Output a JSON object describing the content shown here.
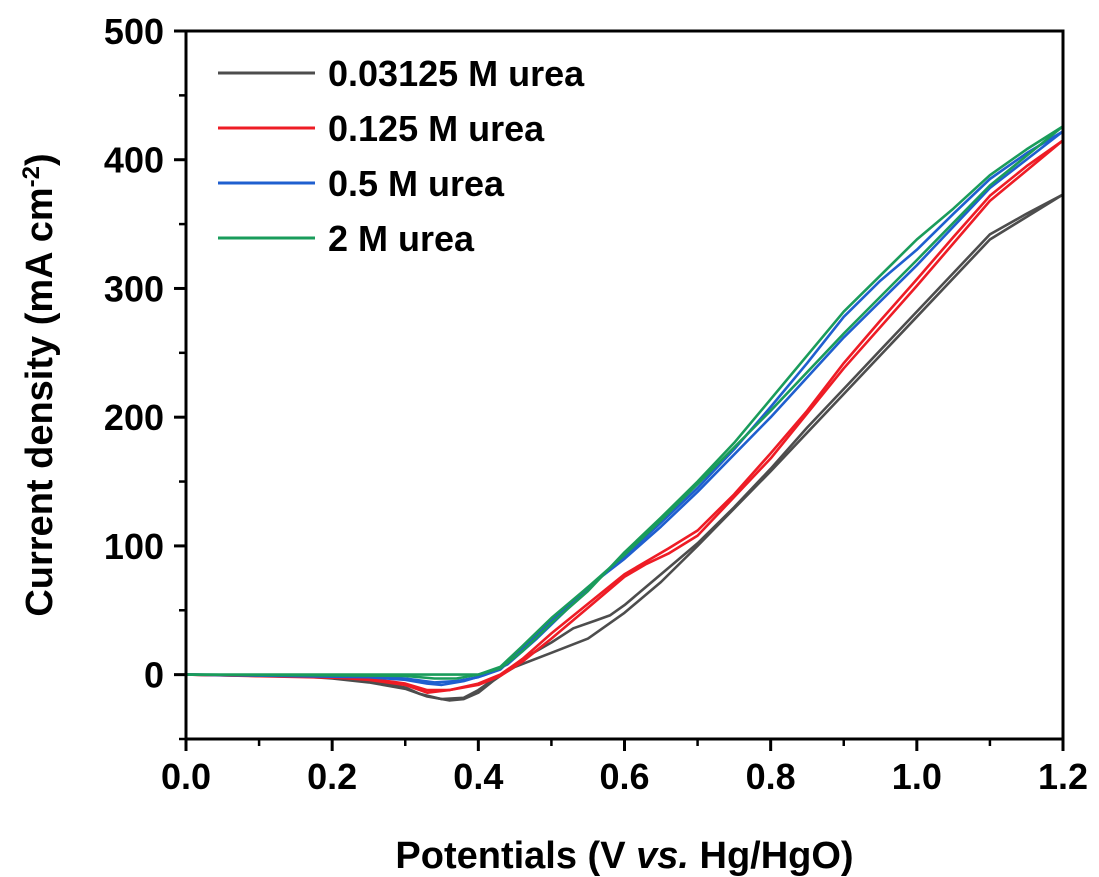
{
  "chart_data": {
    "type": "line",
    "title": "",
    "xlabel": {
      "pre": "Potentials (V ",
      "italic": "vs.",
      "post": " Hg/HgO)"
    },
    "ylabel": {
      "main": "Current density (mA cm",
      "sup": "-2",
      "close": ")"
    },
    "xlim": [
      0.0,
      1.2
    ],
    "ylim": [
      -50,
      500
    ],
    "xticks": [
      "0.0",
      "0.2",
      "0.4",
      "0.6",
      "0.8",
      "1.0",
      "1.2"
    ],
    "yticks": [
      "0",
      "100",
      "200",
      "300",
      "400",
      "500"
    ],
    "grid": false,
    "legend_position": "top-left",
    "series": [
      {
        "name": "0.03125 M urea",
        "color": "#4d4d4d",
        "forward": [
          [
            0.0,
            0
          ],
          [
            0.15,
            -1
          ],
          [
            0.2,
            -3
          ],
          [
            0.25,
            -6
          ],
          [
            0.3,
            -11
          ],
          [
            0.33,
            -17
          ],
          [
            0.36,
            -20
          ],
          [
            0.38,
            -19
          ],
          [
            0.4,
            -14
          ],
          [
            0.42,
            -5
          ],
          [
            0.44,
            3
          ],
          [
            0.46,
            12
          ],
          [
            0.5,
            25
          ],
          [
            0.53,
            36
          ],
          [
            0.56,
            42
          ],
          [
            0.58,
            46
          ],
          [
            0.6,
            54
          ],
          [
            0.65,
            78
          ],
          [
            0.7,
            102
          ],
          [
            0.75,
            130
          ],
          [
            0.8,
            160
          ],
          [
            0.85,
            192
          ],
          [
            0.9,
            222
          ],
          [
            0.95,
            252
          ],
          [
            1.0,
            282
          ],
          [
            1.05,
            312
          ],
          [
            1.1,
            342
          ],
          [
            1.15,
            358
          ],
          [
            1.2,
            373
          ]
        ],
        "backward": [
          [
            1.2,
            373
          ],
          [
            1.1,
            338
          ],
          [
            1.0,
            278
          ],
          [
            0.9,
            218
          ],
          [
            0.8,
            158
          ],
          [
            0.7,
            100
          ],
          [
            0.65,
            72
          ],
          [
            0.6,
            48
          ],
          [
            0.55,
            28
          ],
          [
            0.5,
            17
          ],
          [
            0.45,
            6
          ],
          [
            0.42,
            -4
          ],
          [
            0.4,
            -12
          ],
          [
            0.38,
            -18
          ],
          [
            0.35,
            -19
          ],
          [
            0.32,
            -15
          ],
          [
            0.3,
            -10
          ],
          [
            0.25,
            -5
          ],
          [
            0.2,
            -2
          ],
          [
            0.0,
            0
          ]
        ]
      },
      {
        "name": "0.125 M urea",
        "color": "#ee1c25",
        "forward": [
          [
            0.0,
            0
          ],
          [
            0.2,
            -2
          ],
          [
            0.25,
            -4
          ],
          [
            0.3,
            -8
          ],
          [
            0.33,
            -14
          ],
          [
            0.36,
            -12
          ],
          [
            0.4,
            -7
          ],
          [
            0.43,
            0
          ],
          [
            0.46,
            12
          ],
          [
            0.5,
            32
          ],
          [
            0.55,
            55
          ],
          [
            0.6,
            78
          ],
          [
            0.63,
            88
          ],
          [
            0.66,
            98
          ],
          [
            0.7,
            112
          ],
          [
            0.75,
            140
          ],
          [
            0.8,
            172
          ],
          [
            0.85,
            205
          ],
          [
            0.9,
            242
          ],
          [
            0.95,
            275
          ],
          [
            1.0,
            307
          ],
          [
            1.05,
            340
          ],
          [
            1.1,
            372
          ],
          [
            1.15,
            395
          ],
          [
            1.2,
            415
          ]
        ],
        "backward": [
          [
            1.2,
            415
          ],
          [
            1.1,
            368
          ],
          [
            1.0,
            302
          ],
          [
            0.9,
            238
          ],
          [
            0.8,
            168
          ],
          [
            0.7,
            108
          ],
          [
            0.66,
            94
          ],
          [
            0.63,
            86
          ],
          [
            0.6,
            76
          ],
          [
            0.55,
            52
          ],
          [
            0.5,
            28
          ],
          [
            0.46,
            10
          ],
          [
            0.43,
            -1
          ],
          [
            0.4,
            -8
          ],
          [
            0.36,
            -12
          ],
          [
            0.33,
            -12
          ],
          [
            0.3,
            -7
          ],
          [
            0.25,
            -3
          ],
          [
            0.0,
            0
          ]
        ]
      },
      {
        "name": "0.5 M urea",
        "color": "#1f5fcf",
        "forward": [
          [
            0.0,
            0
          ],
          [
            0.25,
            -2
          ],
          [
            0.3,
            -4
          ],
          [
            0.33,
            -7
          ],
          [
            0.35,
            -8
          ],
          [
            0.38,
            -5
          ],
          [
            0.41,
            0
          ],
          [
            0.44,
            8
          ],
          [
            0.48,
            28
          ],
          [
            0.52,
            50
          ],
          [
            0.56,
            72
          ],
          [
            0.6,
            92
          ],
          [
            0.65,
            118
          ],
          [
            0.7,
            145
          ],
          [
            0.75,
            175
          ],
          [
            0.8,
            208
          ],
          [
            0.85,
            242
          ],
          [
            0.9,
            278
          ],
          [
            0.95,
            306
          ],
          [
            1.0,
            330
          ],
          [
            1.05,
            358
          ],
          [
            1.1,
            385
          ],
          [
            1.15,
            405
          ],
          [
            1.2,
            422
          ]
        ],
        "backward": [
          [
            1.2,
            422
          ],
          [
            1.1,
            378
          ],
          [
            1.0,
            318
          ],
          [
            0.9,
            262
          ],
          [
            0.8,
            200
          ],
          [
            0.7,
            142
          ],
          [
            0.65,
            115
          ],
          [
            0.6,
            90
          ],
          [
            0.55,
            68
          ],
          [
            0.5,
            42
          ],
          [
            0.46,
            20
          ],
          [
            0.43,
            4
          ],
          [
            0.4,
            -2
          ],
          [
            0.37,
            -5
          ],
          [
            0.34,
            -6
          ],
          [
            0.3,
            -3
          ],
          [
            0.25,
            -1
          ],
          [
            0.0,
            0
          ]
        ]
      },
      {
        "name": "2 M urea",
        "color": "#1a9c5b",
        "forward": [
          [
            0.0,
            0
          ],
          [
            0.3,
            -1
          ],
          [
            0.34,
            -3
          ],
          [
            0.37,
            -3
          ],
          [
            0.4,
            0
          ],
          [
            0.43,
            5
          ],
          [
            0.46,
            18
          ],
          [
            0.5,
            40
          ],
          [
            0.55,
            65
          ],
          [
            0.6,
            95
          ],
          [
            0.65,
            122
          ],
          [
            0.7,
            150
          ],
          [
            0.75,
            180
          ],
          [
            0.8,
            214
          ],
          [
            0.85,
            248
          ],
          [
            0.9,
            282
          ],
          [
            0.95,
            310
          ],
          [
            1.0,
            338
          ],
          [
            1.05,
            362
          ],
          [
            1.1,
            388
          ],
          [
            1.15,
            408
          ],
          [
            1.2,
            426
          ]
        ],
        "backward": [
          [
            1.2,
            426
          ],
          [
            1.1,
            380
          ],
          [
            1.0,
            322
          ],
          [
            0.9,
            265
          ],
          [
            0.8,
            205
          ],
          [
            0.7,
            148
          ],
          [
            0.65,
            120
          ],
          [
            0.6,
            93
          ],
          [
            0.55,
            68
          ],
          [
            0.5,
            44
          ],
          [
            0.46,
            22
          ],
          [
            0.43,
            6
          ],
          [
            0.4,
            0
          ],
          [
            0.3,
            0
          ],
          [
            0.0,
            0
          ]
        ]
      }
    ]
  }
}
